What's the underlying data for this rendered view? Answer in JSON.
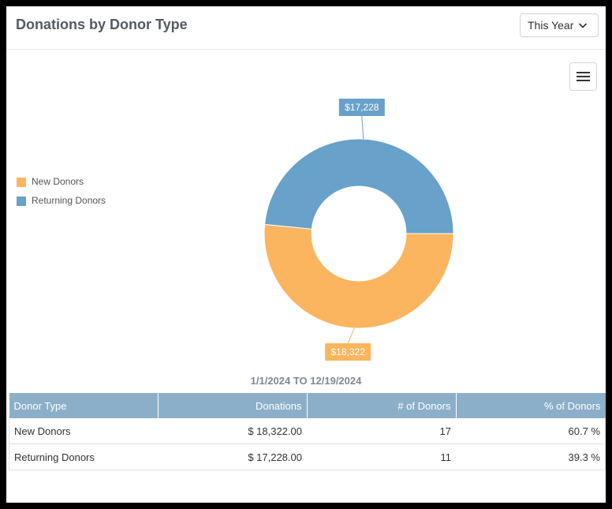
{
  "header": {
    "title": "Donations by Donor Type",
    "period_label": "This Year",
    "period_icon": "chevron-down-icon",
    "menu_icon": "hamburger-menu-icon"
  },
  "chart_data": {
    "type": "pie",
    "donut": true,
    "title": "",
    "legend_position": "left",
    "slices": [
      {
        "name": "New Donors",
        "value": 18322,
        "label": "$18,322",
        "color": "#fbb55e"
      },
      {
        "name": "Returning Donors",
        "value": 17228,
        "label": "$17,228",
        "color": "#68a1c9"
      }
    ]
  },
  "date_range": "1/1/2024 TO 12/19/2024",
  "table": {
    "headers": [
      "Donor Type",
      "Donations",
      "# of Donors",
      "% of Donors"
    ],
    "rows": [
      [
        "New Donors",
        "$ 18,322.00",
        "17",
        "60.7 %"
      ],
      [
        "Returning Donors",
        "$ 17,228.00",
        "11",
        "39.3 %"
      ]
    ]
  }
}
